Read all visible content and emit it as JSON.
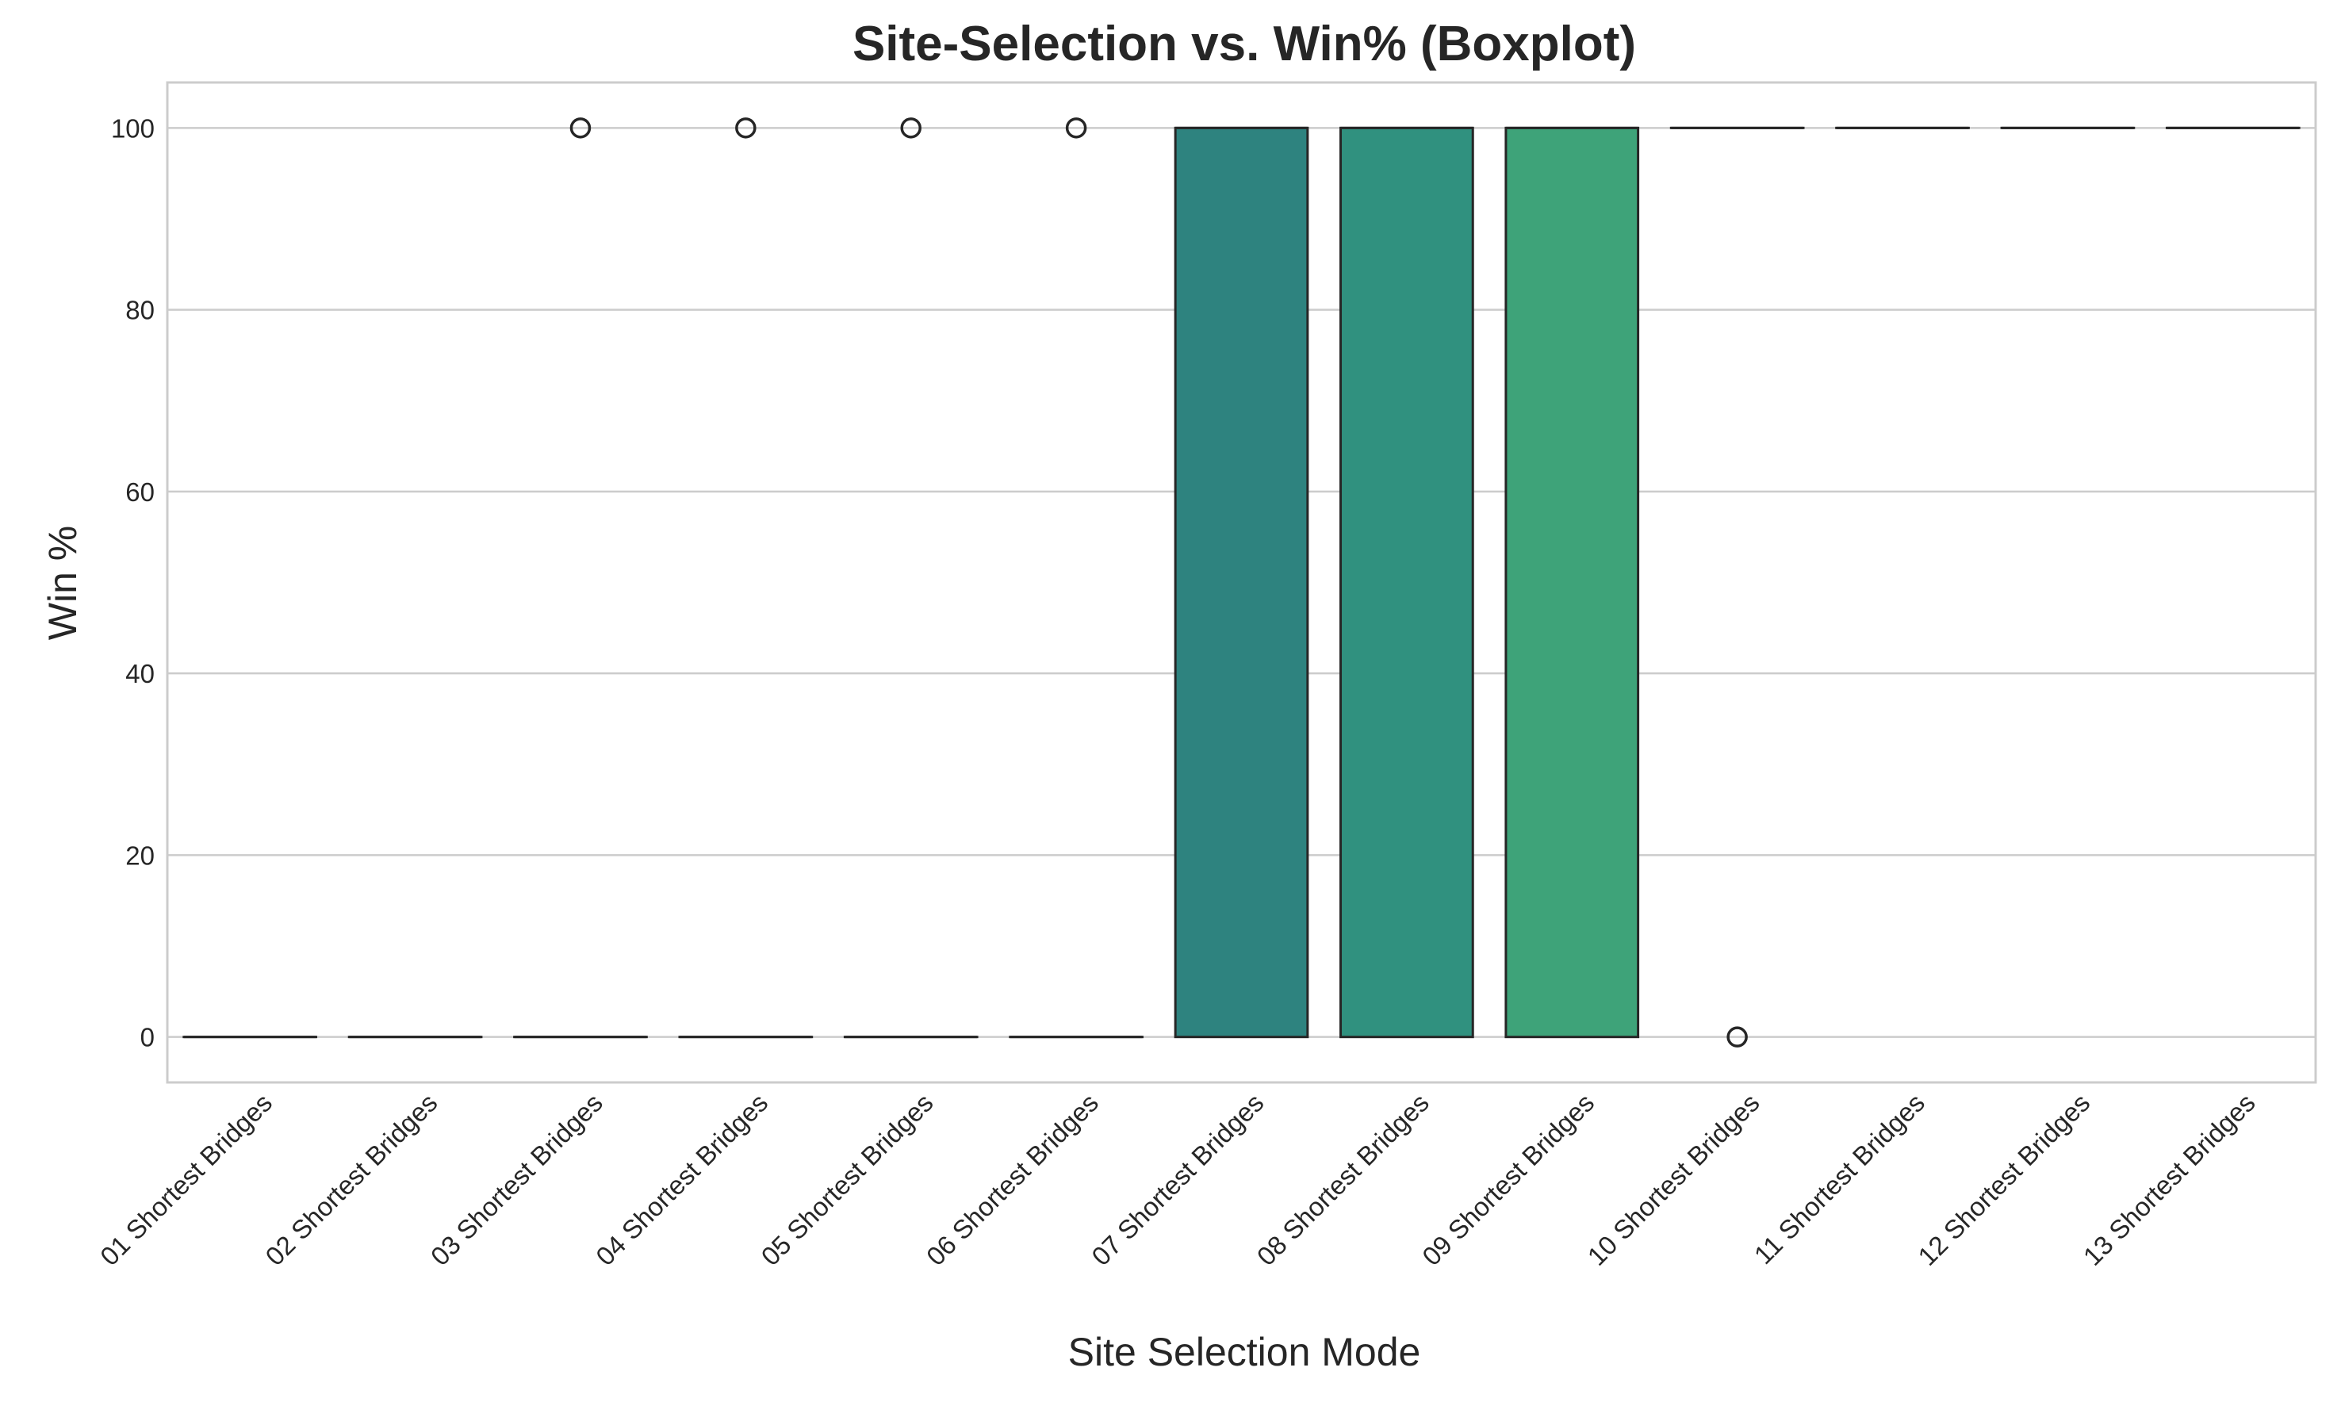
{
  "chart_data": {
    "type": "box",
    "title": "Site-Selection vs. Win% (Boxplot)",
    "xlabel": "Site Selection Mode",
    "ylabel": "Win %",
    "ylim": [
      -5,
      105
    ],
    "yticks": [
      0,
      20,
      40,
      60,
      80,
      100
    ],
    "grid": "horizontal",
    "categories": [
      "01 Shortest Bridges",
      "02 Shortest Bridges",
      "03 Shortest Bridges",
      "04 Shortest Bridges",
      "05 Shortest Bridges",
      "06 Shortest Bridges",
      "07 Shortest Bridges",
      "08 Shortest Bridges",
      "09 Shortest Bridges",
      "10 Shortest Bridges",
      "11 Shortest Bridges",
      "12 Shortest Bridges",
      "13 Shortest Bridges"
    ],
    "boxes": [
      {
        "q1": 0,
        "median": 0,
        "q3": 0,
        "whisker_low": 0,
        "whisker_high": 0,
        "outliers": [],
        "color": "#2f4a86"
      },
      {
        "q1": 0,
        "median": 0,
        "q3": 0,
        "whisker_low": 0,
        "whisker_high": 0,
        "outliers": [],
        "color": "#2d5a8c"
      },
      {
        "q1": 0,
        "median": 0,
        "q3": 0,
        "whisker_low": 0,
        "whisker_high": 0,
        "outliers": [
          100
        ],
        "color": "#2b678e"
      },
      {
        "q1": 0,
        "median": 0,
        "q3": 0,
        "whisker_low": 0,
        "whisker_high": 0,
        "outliers": [
          100
        ],
        "color": "#29738e"
      },
      {
        "q1": 0,
        "median": 0,
        "q3": 0,
        "whisker_low": 0,
        "whisker_high": 0,
        "outliers": [
          100
        ],
        "color": "#277d8e"
      },
      {
        "q1": 0,
        "median": 0,
        "q3": 0,
        "whisker_low": 0,
        "whisker_high": 0,
        "outliers": [
          100
        ],
        "color": "#25878e"
      },
      {
        "q1": 0,
        "median": 100,
        "q3": 100,
        "whisker_low": 0,
        "whisker_high": 100,
        "outliers": [],
        "color": "#2e837f"
      },
      {
        "q1": 0,
        "median": 100,
        "q3": 100,
        "whisker_low": 0,
        "whisker_high": 100,
        "outliers": [],
        "color": "#30917f"
      },
      {
        "q1": 0,
        "median": 100,
        "q3": 100,
        "whisker_low": 0,
        "whisker_high": 100,
        "outliers": [],
        "color": "#3ea379"
      },
      {
        "q1": 100,
        "median": 100,
        "q3": 100,
        "whisker_low": 100,
        "whisker_high": 100,
        "outliers": [
          0
        ],
        "color": "#4fb46b"
      },
      {
        "q1": 100,
        "median": 100,
        "q3": 100,
        "whisker_low": 100,
        "whisker_high": 100,
        "outliers": [],
        "color": "#6cc15c"
      },
      {
        "q1": 100,
        "median": 100,
        "q3": 100,
        "whisker_low": 100,
        "whisker_high": 100,
        "outliers": [],
        "color": "#8ecb4a"
      },
      {
        "q1": 100,
        "median": 100,
        "q3": 100,
        "whisker_low": 100,
        "whisker_high": 100,
        "outliers": [],
        "color": "#b3d33a"
      }
    ]
  }
}
